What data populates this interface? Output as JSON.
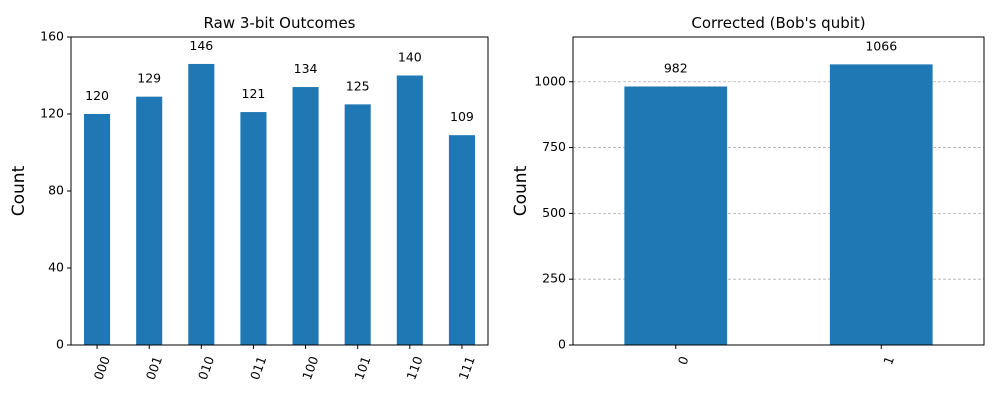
{
  "chart_data": [
    {
      "type": "bar",
      "title": "Raw 3-bit Outcomes",
      "xlabel": "",
      "ylabel": "Count",
      "categories": [
        "000",
        "001",
        "010",
        "011",
        "100",
        "101",
        "110",
        "111"
      ],
      "values": [
        120,
        129,
        146,
        121,
        134,
        125,
        140,
        109
      ],
      "ylim": [
        0,
        160
      ],
      "yticks": [
        0,
        40,
        80,
        120,
        160
      ],
      "grid": false,
      "color": "#1f77b4",
      "data_labels": true
    },
    {
      "type": "bar",
      "title": "Corrected (Bob's qubit)",
      "xlabel": "",
      "ylabel": "Count",
      "categories": [
        "0",
        "1"
      ],
      "values": [
        982,
        1066
      ],
      "ylim": [
        0,
        1170
      ],
      "yticks": [
        0,
        250,
        500,
        750,
        1000
      ],
      "grid": true,
      "color": "#1f77b4",
      "data_labels": true
    }
  ]
}
